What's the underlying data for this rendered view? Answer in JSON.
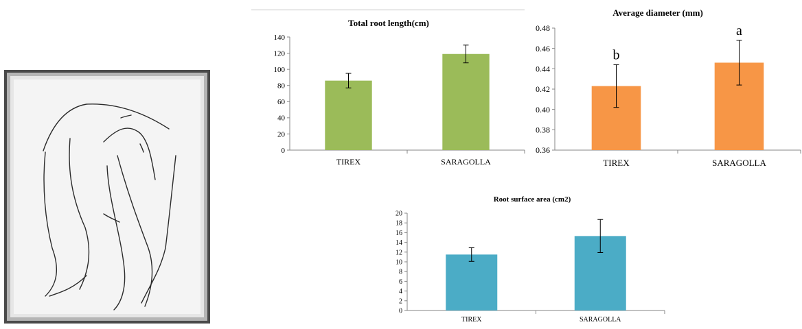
{
  "chart_data": [
    {
      "type": "bar",
      "title": "Total root length(cm)",
      "categories": [
        "TIREX",
        "SARAGOLLA"
      ],
      "values": [
        86,
        119
      ],
      "errors": [
        9,
        11
      ],
      "ylim": [
        0,
        140
      ],
      "yticks": [
        "0",
        "20",
        "40",
        "60",
        "80",
        "100",
        "120",
        "140"
      ],
      "color": "#9BBB59",
      "grid": false
    },
    {
      "type": "bar",
      "title": "Average diameter (mm)",
      "categories": [
        "TIREX",
        "SARAGOLLA"
      ],
      "values": [
        0.423,
        0.446
      ],
      "errors": [
        0.021,
        0.022
      ],
      "ylim": [
        0.36,
        0.48
      ],
      "yticks": [
        "0.36",
        "0.38",
        "0.40",
        "0.42",
        "0.44",
        "0.46",
        "0.48"
      ],
      "significance": [
        "b",
        "a"
      ],
      "color": "#F79646",
      "grid": false
    },
    {
      "type": "bar",
      "title": "Root surface area (cm2)",
      "categories": [
        "TIREX",
        "SARAGOLLA"
      ],
      "values": [
        11.5,
        15.3
      ],
      "errors": [
        1.4,
        3.4
      ],
      "ylim": [
        0,
        20
      ],
      "yticks": [
        "0",
        "2",
        "4",
        "6",
        "8",
        "10",
        "12",
        "14",
        "16",
        "18",
        "20"
      ],
      "color": "#4BACC6",
      "grid": false
    }
  ],
  "image": {
    "frame_color": "#3a3a3a",
    "background_color": "#f2f2f2"
  }
}
